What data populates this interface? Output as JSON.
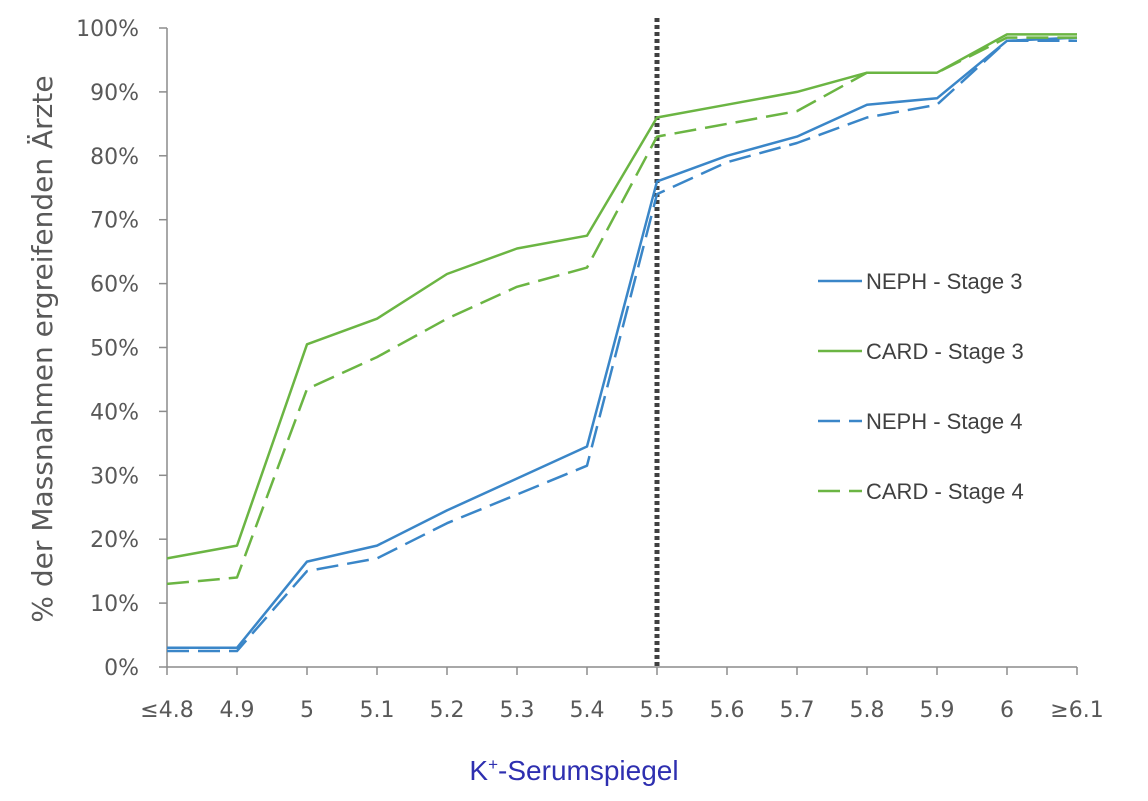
{
  "chart_data": {
    "type": "line",
    "categories": [
      "≤4.8",
      "4.9",
      "5",
      "5.1",
      "5.2",
      "5.3",
      "5.4",
      "5.5",
      "5.6",
      "5.7",
      "5.8",
      "5.9",
      "6",
      "≥6.1"
    ],
    "series": [
      {
        "name": "NEPH - Stage 3",
        "color": "#3a86c8",
        "dash": "solid",
        "values": [
          3,
          3,
          16.5,
          19,
          24.5,
          29.5,
          34.5,
          76,
          80,
          83,
          88,
          89,
          98,
          98.5
        ]
      },
      {
        "name": "CARD - Stage 3",
        "color": "#6bb543",
        "dash": "solid",
        "values": [
          17,
          19,
          50.5,
          54.5,
          61.5,
          65.5,
          67.5,
          86,
          88,
          90,
          93,
          93,
          99,
          99
        ]
      },
      {
        "name": "NEPH - Stage 4",
        "color": "#3a86c8",
        "dash": "dashed",
        "values": [
          2.5,
          2.5,
          15,
          17,
          22.5,
          27,
          31.5,
          74,
          79,
          82,
          86,
          88,
          98,
          98
        ]
      },
      {
        "name": "CARD - Stage 4",
        "color": "#6bb543",
        "dash": "dashed",
        "values": [
          13,
          14,
          43.5,
          48.5,
          54.5,
          59.5,
          62.5,
          83,
          85,
          87,
          93,
          93,
          98.5,
          98.5
        ]
      }
    ],
    "yticks": [
      "0%",
      "10%",
      "20%",
      "30%",
      "40%",
      "50%",
      "60%",
      "70%",
      "80%",
      "90%",
      "100%"
    ],
    "ylim": [
      0,
      100
    ],
    "ylabel": "% der Massnahmen ergreifenden Ärzte",
    "xlabel_prefix": "K",
    "xlabel_sup": "+",
    "xlabel_suffix": "-Serumspiegel",
    "reference_line_at": "5.5",
    "legend_position": "right",
    "grid": false
  }
}
